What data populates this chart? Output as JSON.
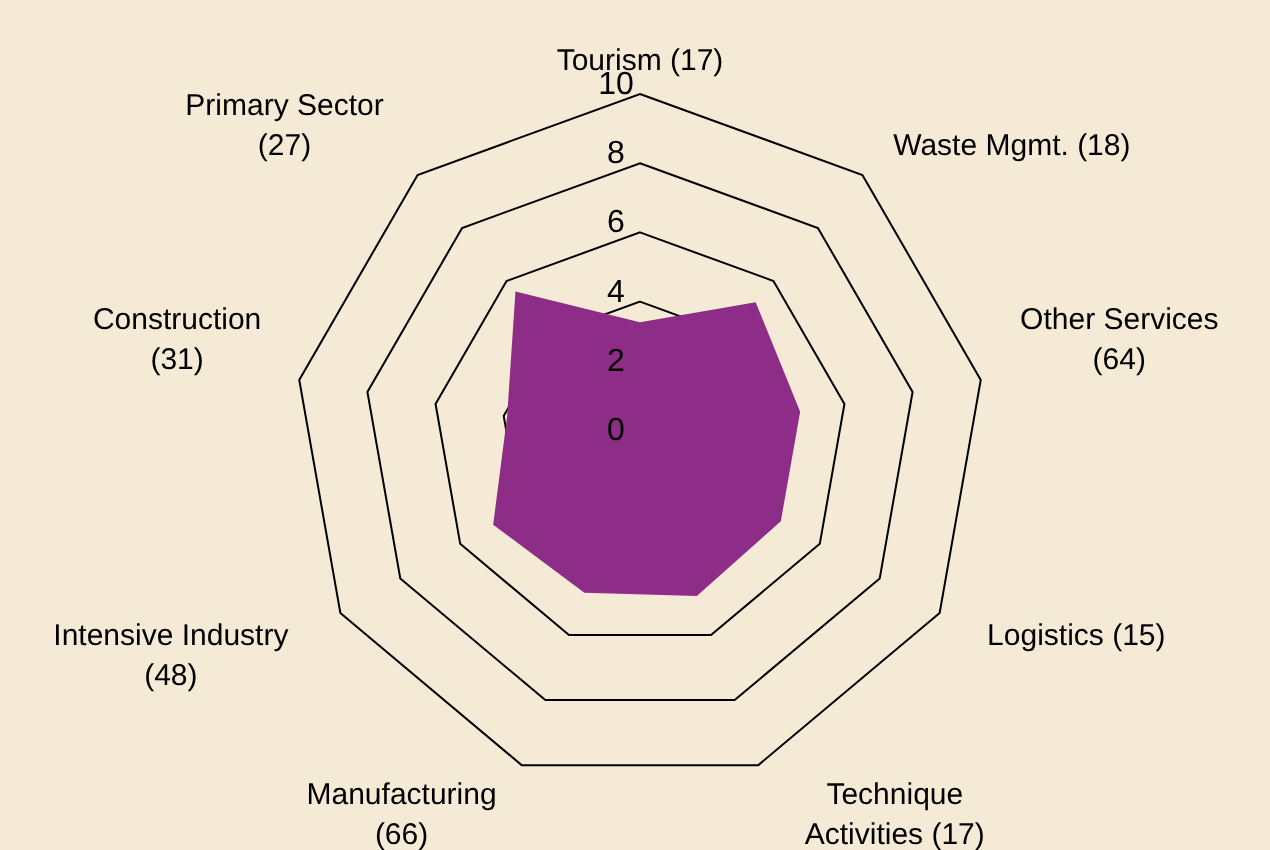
{
  "chart_data": {
    "type": "radar",
    "categories": [
      "Tourism (17)",
      "Waste Mgmt. (18)",
      "Other Services\n(64)",
      "Logistics (15)",
      "Technique\nActivities (17)",
      "Manufacturing\n(66)",
      "Intensive Industry\n(48)",
      "Construction\n(31)",
      "Primary Sector\n(27)"
    ],
    "series": [
      {
        "color": "#8e2d87",
        "values": [
          3.4,
          5.2,
          4.7,
          4.7,
          4.8,
          4.7,
          4.9,
          3.9,
          5.6
        ]
      }
    ],
    "ylim": [
      0,
      10
    ],
    "yticks": [
      0,
      2,
      4,
      6,
      8,
      10
    ],
    "grid": true,
    "legend": false
  }
}
